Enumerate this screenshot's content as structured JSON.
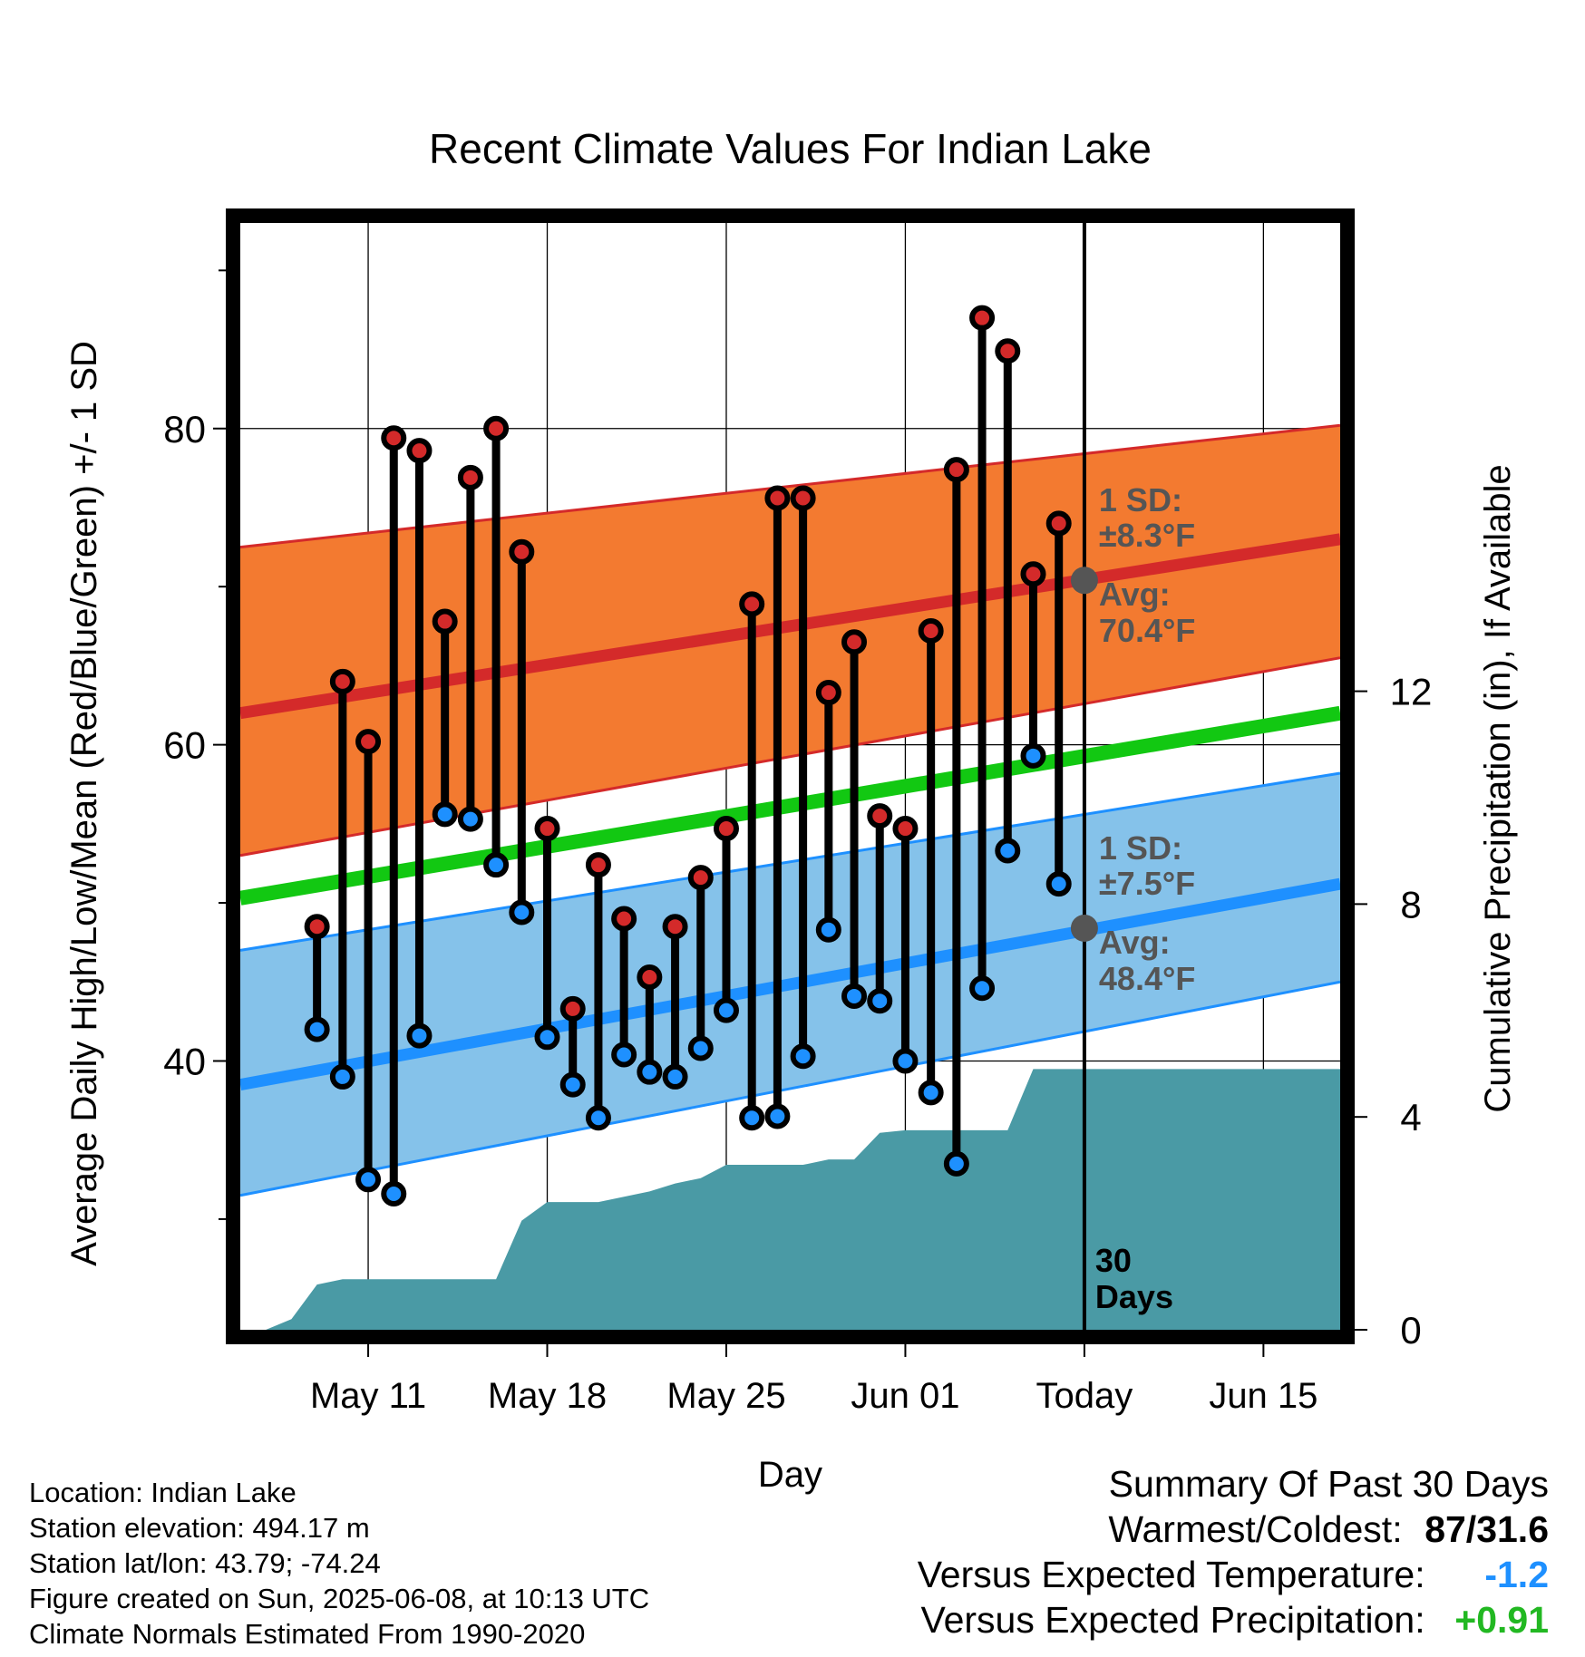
{
  "chart_data": {
    "type": "line",
    "title": "Recent Climate Values For Indian Lake",
    "xlabel": "Day",
    "ylabel_left": "Average Daily High/Low/Mean (Red/Blue/Green) +/- 1 SD",
    "ylabel_right": "Cumulative Precipitation (in), If Available",
    "x_range": [
      "2025-05-06",
      "2025-06-18"
    ],
    "temp_ylim": [
      23,
      93
    ],
    "precip_ylim": [
      0,
      20.8
    ],
    "x_ticks": [
      {
        "date": "2025-05-11",
        "label": "May 11"
      },
      {
        "date": "2025-05-18",
        "label": "May 18"
      },
      {
        "date": "2025-05-25",
        "label": "May 25"
      },
      {
        "date": "2025-06-01",
        "label": "Jun 01"
      },
      {
        "date": "2025-06-08",
        "label": "Today"
      },
      {
        "date": "2025-06-15",
        "label": "Jun 15"
      }
    ],
    "temp_ticks": [
      {
        "value": 40,
        "label": "40"
      },
      {
        "value": 60,
        "label": "60"
      },
      {
        "value": 80,
        "label": "80"
      }
    ],
    "temp_minor_ticks": [
      30,
      50,
      70,
      90
    ],
    "precip_ticks": [
      {
        "value": 0,
        "label": "0"
      },
      {
        "value": 4,
        "label": "4"
      },
      {
        "value": 8,
        "label": "8"
      },
      {
        "value": 12,
        "label": "12"
      }
    ],
    "grid": true,
    "normals": {
      "dates": [
        "2025-05-06",
        "2025-06-18"
      ],
      "high_avg": [
        62.0,
        73.0
      ],
      "high_upper": [
        72.5,
        80.2
      ],
      "high_lower": [
        53.0,
        65.5
      ],
      "low_avg": [
        38.5,
        51.2
      ],
      "low_upper": [
        47.0,
        58.2
      ],
      "low_lower": [
        31.5,
        45.0
      ],
      "mean_avg": [
        50.3,
        62.0
      ]
    },
    "today_annotations": {
      "high_sd": "1 SD:",
      "high_sd_value": "±8.3°F",
      "high_avg": "Avg:",
      "high_avg_value": "70.4°F",
      "high_avg_num": 70.4,
      "low_sd": "1 SD:",
      "low_sd_value": "±7.5°F",
      "low_avg": "Avg:",
      "low_avg_value": "48.4°F",
      "low_avg_num": 48.4
    },
    "period_label": [
      "30",
      "Days"
    ],
    "series": [
      {
        "name": "Daily High",
        "color": "#d42a2a",
        "dates": [
          "2025-05-09",
          "2025-05-10",
          "2025-05-11",
          "2025-05-12",
          "2025-05-13",
          "2025-05-14",
          "2025-05-15",
          "2025-05-16",
          "2025-05-17",
          "2025-05-18",
          "2025-05-19",
          "2025-05-20",
          "2025-05-21",
          "2025-05-22",
          "2025-05-23",
          "2025-05-24",
          "2025-05-25",
          "2025-05-26",
          "2025-05-27",
          "2025-05-28",
          "2025-05-29",
          "2025-05-30",
          "2025-05-31",
          "2025-06-01",
          "2025-06-02",
          "2025-06-03",
          "2025-06-04",
          "2025-06-05",
          "2025-06-06",
          "2025-06-07"
        ],
        "values": [
          48.5,
          64,
          60.2,
          79.4,
          78.6,
          67.8,
          76.9,
          80,
          72.2,
          54.7,
          43.3,
          52.4,
          49,
          45.3,
          48.5,
          51.6,
          54.7,
          68.9,
          75.6,
          75.6,
          63.3,
          66.5,
          55.5,
          54.7,
          67.2,
          77.4,
          87,
          84.9,
          70.8,
          74
        ]
      },
      {
        "name": "Daily Low",
        "color": "#1e90ff",
        "dates": [
          "2025-05-09",
          "2025-05-10",
          "2025-05-11",
          "2025-05-12",
          "2025-05-13",
          "2025-05-14",
          "2025-05-15",
          "2025-05-16",
          "2025-05-17",
          "2025-05-18",
          "2025-05-19",
          "2025-05-20",
          "2025-05-21",
          "2025-05-22",
          "2025-05-23",
          "2025-05-24",
          "2025-05-25",
          "2025-05-26",
          "2025-05-27",
          "2025-05-28",
          "2025-05-29",
          "2025-05-30",
          "2025-05-31",
          "2025-06-01",
          "2025-06-02",
          "2025-06-03",
          "2025-06-04",
          "2025-06-05",
          "2025-06-06",
          "2025-06-07"
        ],
        "values": [
          42,
          39,
          32.5,
          31.6,
          41.6,
          55.6,
          55.3,
          52.4,
          49.4,
          41.5,
          38.5,
          36.4,
          40.4,
          39.3,
          39,
          40.8,
          43.2,
          36.4,
          36.5,
          40.3,
          48.3,
          44.1,
          43.8,
          40,
          38,
          33.5,
          44.6,
          53.3,
          59.3,
          51.2
        ]
      },
      {
        "name": "Cumulative Precipitation",
        "color": "#4a9aa5",
        "dates": [
          "2025-05-06",
          "2025-05-07",
          "2025-05-08",
          "2025-05-09",
          "2025-05-10",
          "2025-05-11",
          "2025-05-12",
          "2025-05-13",
          "2025-05-14",
          "2025-05-15",
          "2025-05-16",
          "2025-05-17",
          "2025-05-18",
          "2025-05-19",
          "2025-05-20",
          "2025-05-21",
          "2025-05-22",
          "2025-05-23",
          "2025-05-24",
          "2025-05-25",
          "2025-05-26",
          "2025-05-27",
          "2025-05-28",
          "2025-05-29",
          "2025-05-30",
          "2025-05-31",
          "2025-06-01",
          "2025-06-02",
          "2025-06-03",
          "2025-06-04",
          "2025-06-05",
          "2025-06-06",
          "2025-06-07",
          "2025-06-08",
          "2025-06-18"
        ],
        "values": [
          0,
          0,
          0.2,
          0.85,
          0.95,
          0.95,
          0.95,
          0.95,
          0.95,
          0.95,
          0.95,
          2.05,
          2.4,
          2.4,
          2.4,
          2.5,
          2.6,
          2.75,
          2.85,
          3.1,
          3.1,
          3.1,
          3.1,
          3.2,
          3.2,
          3.7,
          3.75,
          3.75,
          3.75,
          3.75,
          3.75,
          4.9,
          4.9,
          4.9,
          4.9
        ]
      }
    ]
  },
  "footer": {
    "location": "Location: Indian Lake",
    "elevation": "Station elevation: 494.17 m",
    "latlon": "Station lat/lon: 43.79; -74.24",
    "created": "Figure created on Sun, 2025-06-08, at 10:13 UTC",
    "normals": "Climate Normals Estimated From 1990-2020"
  },
  "summary": {
    "heading": "Summary Of Past 30 Days",
    "warmest_label": "Warmest/Coldest:",
    "warmest_value": "87/31.6",
    "temp_label": "Versus Expected Temperature:",
    "temp_value": "-1.2",
    "precip_label": "Versus Expected Precipitation:",
    "precip_value": "+0.91"
  },
  "colors": {
    "high_band": "#f37a30",
    "high_line": "#d42a2a",
    "low_band": "#85c2ea",
    "low_line": "#1e90ff",
    "mean_line": "#12c812",
    "precip_fill": "#4a9aa5",
    "annotation": "#555555",
    "frame": "#000000"
  }
}
